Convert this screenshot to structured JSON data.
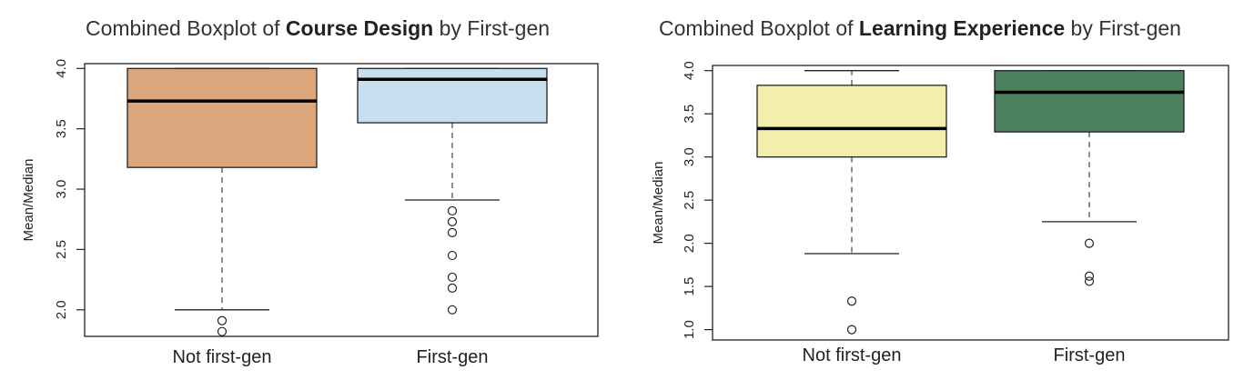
{
  "chart_data": [
    {
      "type": "boxplot",
      "title": {
        "prefix": "Combined Boxplot of ",
        "bold": "Course Design",
        "suffix": " by First-gen"
      },
      "ylabel": "Mean/Median",
      "ylim": [
        1.78,
        4.04
      ],
      "yticks": [
        "2.0",
        "2.5",
        "3.0",
        "3.5",
        "4.0"
      ],
      "categories": [
        "Not first-gen",
        "First-gen"
      ],
      "boxes": [
        {
          "category": "Not first-gen",
          "color": "#dba67b",
          "q1": 3.18,
          "median": 3.73,
          "q3": 4.0,
          "whisker_low": 2.0,
          "whisker_high": 4.0,
          "outliers": [
            1.91,
            1.82
          ]
        },
        {
          "category": "First-gen",
          "color": "#c8dff0",
          "q1": 3.55,
          "median": 3.91,
          "q3": 4.0,
          "whisker_low": 2.91,
          "whisker_high": 4.0,
          "outliers": [
            2.82,
            2.73,
            2.64,
            2.45,
            2.27,
            2.18,
            2.0
          ]
        }
      ]
    },
    {
      "type": "boxplot",
      "title": {
        "prefix": "Combined Boxplot of ",
        "bold": "Learning Experience",
        "suffix": " by First-gen"
      },
      "ylabel": "Mean/Median",
      "ylim": [
        0.88,
        4.06
      ],
      "yticks": [
        "1.0",
        "1.5",
        "2.0",
        "2.5",
        "3.0",
        "3.5",
        "4.0"
      ],
      "categories": [
        "Not first-gen",
        "First-gen"
      ],
      "boxes": [
        {
          "category": "Not first-gen",
          "color": "#f3eeaa",
          "q1": 3.0,
          "median": 3.33,
          "q3": 3.83,
          "whisker_low": 1.88,
          "whisker_high": 4.0,
          "outliers": [
            1.33,
            1.0
          ]
        },
        {
          "category": "First-gen",
          "color": "#4c7f5c",
          "q1": 3.29,
          "median": 3.75,
          "q3": 4.0,
          "whisker_low": 2.25,
          "whisker_high": 4.0,
          "outliers": [
            2.0,
            1.62,
            1.56
          ]
        }
      ]
    }
  ]
}
